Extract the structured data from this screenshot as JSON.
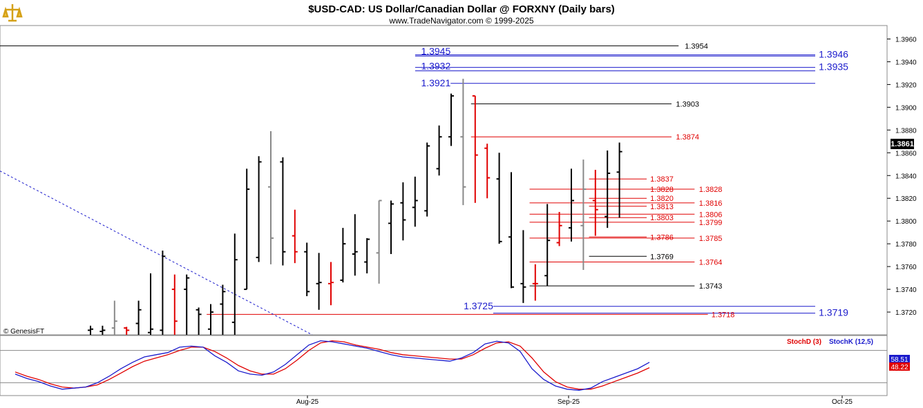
{
  "header": {
    "title": "$USD-CAD:  US Dollar/Canadian Dollar @ FORXNY  (Daily bars)",
    "subtitle": "www.TradeNavigator.com © 1999-2025"
  },
  "watermark": "© GenesisFT",
  "current_price": "1.3861",
  "colors": {
    "up": "#000000",
    "down": "#e00000",
    "neutral": "#888888",
    "blue": "#1a1acc",
    "red": "#e00000",
    "black": "#000000"
  },
  "chart_data": {
    "type": "ohlc",
    "y_axis": {
      "min": 1.37,
      "max": 1.397,
      "ticks": [
        "1.3960",
        "1.3940",
        "1.3920",
        "1.3900",
        "1.3880",
        "1.3860",
        "1.3840",
        "1.3820",
        "1.3800",
        "1.3780",
        "1.3760",
        "1.3740",
        "1.3720"
      ]
    },
    "x_axis": {
      "labels": [
        "Aug-25",
        "Sep-25",
        "Oct-25"
      ]
    },
    "bars": [
      {
        "h": 1.3708,
        "l": 1.37,
        "o": 1.3704,
        "c": 1.3705,
        "dir": "up"
      },
      {
        "h": 1.3708,
        "l": 1.37,
        "o": 1.3703,
        "c": 1.3704,
        "dir": "up"
      },
      {
        "h": 1.373,
        "l": 1.37,
        "o": 1.3706,
        "c": 1.3712,
        "dir": "neutral"
      },
      {
        "h": 1.3707,
        "l": 1.37,
        "o": 1.3706,
        "c": 1.3704,
        "dir": "down"
      },
      {
        "h": 1.373,
        "l": 1.37,
        "o": 1.371,
        "c": 1.3722,
        "dir": "up"
      },
      {
        "h": 1.3754,
        "l": 1.37,
        "o": 1.3702,
        "c": 1.3705,
        "dir": "up"
      },
      {
        "h": 1.3774,
        "l": 1.37,
        "o": 1.3704,
        "c": 1.3769,
        "dir": "up"
      },
      {
        "h": 1.3753,
        "l": 1.37,
        "o": 1.374,
        "c": 1.3712,
        "dir": "down"
      },
      {
        "h": 1.3753,
        "l": 1.37,
        "o": 1.374,
        "c": 1.375,
        "dir": "up"
      },
      {
        "h": 1.3724,
        "l": 1.37,
        "o": 1.3722,
        "c": 1.3718,
        "dir": "up"
      },
      {
        "h": 1.3727,
        "l": 1.37,
        "o": 1.3705,
        "c": 1.372,
        "dir": "up"
      },
      {
        "h": 1.3744,
        "l": 1.37,
        "o": 1.3727,
        "c": 1.3738,
        "dir": "up"
      },
      {
        "h": 1.3789,
        "l": 1.37,
        "o": 1.3711,
        "c": 1.3766,
        "dir": "up"
      },
      {
        "h": 1.3846,
        "l": 1.374,
        "o": 1.374,
        "c": 1.3828,
        "dir": "up"
      },
      {
        "h": 1.3857,
        "l": 1.3764,
        "o": 1.3768,
        "c": 1.3852,
        "dir": "up"
      },
      {
        "h": 1.3879,
        "l": 1.3762,
        "o": 1.383,
        "c": 1.3785,
        "dir": "neutral"
      },
      {
        "h": 1.3856,
        "l": 1.3761,
        "o": 1.3852,
        "c": 1.3773,
        "dir": "up"
      },
      {
        "h": 1.381,
        "l": 1.3763,
        "o": 1.3787,
        "c": 1.3773,
        "dir": "down"
      },
      {
        "h": 1.3781,
        "l": 1.3734,
        "o": 1.3773,
        "c": 1.3738,
        "dir": "up"
      },
      {
        "h": 1.3772,
        "l": 1.3722,
        "o": 1.3745,
        "c": 1.3746,
        "dir": "up"
      },
      {
        "h": 1.3764,
        "l": 1.3726,
        "o": 1.3745,
        "c": 1.3746,
        "dir": "down"
      },
      {
        "h": 1.3794,
        "l": 1.3746,
        "o": 1.3748,
        "c": 1.378,
        "dir": "up"
      },
      {
        "h": 1.3806,
        "l": 1.3752,
        "o": 1.3771,
        "c": 1.3773,
        "dir": "up"
      },
      {
        "h": 1.3785,
        "l": 1.3754,
        "o": 1.3764,
        "c": 1.3784,
        "dir": "up"
      },
      {
        "h": 1.3818,
        "l": 1.3745,
        "o": 1.3772,
        "c": 1.3818,
        "dir": "neutral"
      },
      {
        "h": 1.3818,
        "l": 1.3771,
        "o": 1.3798,
        "c": 1.3815,
        "dir": "up"
      },
      {
        "h": 1.3834,
        "l": 1.3783,
        "o": 1.3816,
        "c": 1.3801,
        "dir": "up"
      },
      {
        "h": 1.3839,
        "l": 1.3795,
        "o": 1.3812,
        "c": 1.3818,
        "dir": "up"
      },
      {
        "h": 1.3869,
        "l": 1.3804,
        "o": 1.3809,
        "c": 1.3866,
        "dir": "up"
      },
      {
        "h": 1.3884,
        "l": 1.384,
        "o": 1.3846,
        "c": 1.3874,
        "dir": "up"
      },
      {
        "h": 1.3912,
        "l": 1.3866,
        "o": 1.3874,
        "c": 1.391,
        "dir": "up"
      },
      {
        "h": 1.3925,
        "l": 1.3814,
        "o": 1.3874,
        "c": 1.383,
        "dir": "neutral"
      },
      {
        "h": 1.391,
        "l": 1.3816,
        "o": 1.391,
        "c": 1.3858,
        "dir": "down"
      },
      {
        "h": 1.3868,
        "l": 1.382,
        "o": 1.3864,
        "c": 1.3838,
        "dir": "down"
      },
      {
        "h": 1.386,
        "l": 1.378,
        "o": 1.3837,
        "c": 1.3782,
        "dir": "up"
      },
      {
        "h": 1.3843,
        "l": 1.3741,
        "o": 1.3786,
        "c": 1.3742,
        "dir": "up"
      },
      {
        "h": 1.3792,
        "l": 1.3728,
        "o": 1.3745,
        "c": 1.3742,
        "dir": "up"
      },
      {
        "h": 1.3762,
        "l": 1.373,
        "o": 1.3745,
        "c": 1.3745,
        "dir": "down"
      },
      {
        "h": 1.3815,
        "l": 1.3743,
        "o": 1.3752,
        "c": 1.3783,
        "dir": "up"
      },
      {
        "h": 1.3808,
        "l": 1.3778,
        "o": 1.3781,
        "c": 1.3796,
        "dir": "down"
      },
      {
        "h": 1.3846,
        "l": 1.3782,
        "o": 1.3794,
        "c": 1.3818,
        "dir": "up"
      },
      {
        "h": 1.3854,
        "l": 1.3757,
        "o": 1.3796,
        "c": 1.3828,
        "dir": "neutral"
      },
      {
        "h": 1.3845,
        "l": 1.3787,
        "o": 1.3818,
        "c": 1.381,
        "dir": "down"
      },
      {
        "h": 1.3862,
        "l": 1.3794,
        "o": 1.3804,
        "c": 1.3842,
        "dir": "up"
      },
      {
        "h": 1.3869,
        "l": 1.3803,
        "o": 1.3843,
        "c": 1.3861,
        "dir": "up"
      }
    ],
    "levels": [
      {
        "value": 1.3954,
        "label": "1.3954",
        "color": "black",
        "x0": 0,
        "x1": 0.765,
        "lx": 0.772,
        "anchor": "start"
      },
      {
        "value": 1.3946,
        "label": "1.3946",
        "color": "blue",
        "x0": 0.468,
        "x1": 0.919,
        "lx": 0.923,
        "anchor": "start",
        "large": true
      },
      {
        "value": 1.3945,
        "label": "1.3945",
        "color": "blue",
        "x0": 0.468,
        "x1": 0.919,
        "lx": 0.508,
        "anchor": "end",
        "large": true,
        "above": true
      },
      {
        "value": 1.3935,
        "label": "1.3935",
        "color": "blue",
        "x0": 0.468,
        "x1": 0.919,
        "lx": 0.923,
        "anchor": "start",
        "large": true
      },
      {
        "value": 1.3932,
        "label": "1.3932",
        "color": "blue",
        "x0": 0.468,
        "x1": 0.919,
        "lx": 0.508,
        "anchor": "end",
        "large": true,
        "above": true
      },
      {
        "value": 1.3921,
        "label": "1.3921",
        "color": "blue",
        "x0": 0.508,
        "x1": 0.919,
        "lx": 0.508,
        "anchor": "end",
        "large": true
      },
      {
        "value": 1.3903,
        "label": "1.3903",
        "color": "black",
        "x0": 0.531,
        "x1": 0.757,
        "lx": 0.762,
        "anchor": "start"
      },
      {
        "value": 1.3874,
        "label": "1.3874",
        "color": "red",
        "x0": 0.531,
        "x1": 0.757,
        "lx": 0.762,
        "anchor": "start"
      },
      {
        "value": 1.3837,
        "label": "1.3837",
        "color": "red",
        "x0": 0.664,
        "x1": 0.729,
        "lx": 0.733,
        "anchor": "start"
      },
      {
        "value": 1.3828,
        "label": "1.3828",
        "color": "red",
        "x0": 0.597,
        "x1": 0.783,
        "lx": 0.788,
        "anchor": "start"
      },
      {
        "value": 1.3828,
        "label": "1.3828",
        "color": "red",
        "x0": 0.664,
        "x1": 0.729,
        "lx": 0.733,
        "anchor": "start"
      },
      {
        "value": 1.382,
        "label": "1.3820",
        "color": "red",
        "x0": 0.664,
        "x1": 0.729,
        "lx": 0.733,
        "anchor": "start"
      },
      {
        "value": 1.3816,
        "label": "1.3816",
        "color": "red",
        "x0": 0.597,
        "x1": 0.783,
        "lx": 0.788,
        "anchor": "start"
      },
      {
        "value": 1.3813,
        "label": "1.3813",
        "color": "red",
        "x0": 0.664,
        "x1": 0.729,
        "lx": 0.733,
        "anchor": "start"
      },
      {
        "value": 1.3806,
        "label": "1.3806",
        "color": "red",
        "x0": 0.597,
        "x1": 0.783,
        "lx": 0.788,
        "anchor": "start"
      },
      {
        "value": 1.3803,
        "label": "1.3803",
        "color": "red",
        "x0": 0.664,
        "x1": 0.729,
        "lx": 0.733,
        "anchor": "start"
      },
      {
        "value": 1.3799,
        "label": "1.3799",
        "color": "red",
        "x0": 0.597,
        "x1": 0.783,
        "lx": 0.788,
        "anchor": "start"
      },
      {
        "value": 1.3786,
        "label": "1.3786",
        "color": "red",
        "x0": 0.664,
        "x1": 0.729,
        "lx": 0.733,
        "anchor": "start"
      },
      {
        "value": 1.3785,
        "label": "1.3785",
        "color": "red",
        "x0": 0.597,
        "x1": 0.783,
        "lx": 0.788,
        "anchor": "start"
      },
      {
        "value": 1.3769,
        "label": "1.3769",
        "color": "black",
        "x0": 0.664,
        "x1": 0.729,
        "lx": 0.733,
        "anchor": "start"
      },
      {
        "value": 1.3764,
        "label": "1.3764",
        "color": "red",
        "x0": 0.597,
        "x1": 0.783,
        "lx": 0.788,
        "anchor": "start"
      },
      {
        "value": 1.3743,
        "label": "1.3743",
        "color": "black",
        "x0": 0.597,
        "x1": 0.783,
        "lx": 0.788,
        "anchor": "start"
      },
      {
        "value": 1.3725,
        "label": "1.3725",
        "color": "blue",
        "x0": 0.556,
        "x1": 0.919,
        "lx": 0.556,
        "anchor": "end",
        "large": true
      },
      {
        "value": 1.3719,
        "label": "1.3719",
        "color": "blue",
        "x0": 0.556,
        "x1": 0.919,
        "lx": 0.923,
        "anchor": "start",
        "large": true
      },
      {
        "value": 1.3718,
        "label": "1.3718",
        "color": "red",
        "x0": 0.233,
        "x1": 0.798,
        "lx": 0.802,
        "anchor": "start"
      }
    ],
    "trendline": {
      "from": [
        0,
        1.3844
      ],
      "to": [
        0.352,
        1.37
      ],
      "color": "blue",
      "style": "dashed"
    },
    "stochastic": {
      "legend": [
        {
          "name": "StochD (3)",
          "color": "red"
        },
        {
          "name": "StochK (12,5)",
          "color": "blue"
        }
      ],
      "last_values": {
        "k": "58.51",
        "d": "48.22"
      },
      "k": [
        36,
        28,
        22,
        14,
        8,
        10,
        12,
        20,
        32,
        46,
        58,
        68,
        72,
        76,
        86,
        88,
        86,
        70,
        58,
        42,
        36,
        34,
        40,
        54,
        72,
        90,
        98,
        96,
        92,
        88,
        84,
        78,
        72,
        68,
        66,
        64,
        62,
        60,
        66,
        76,
        92,
        97,
        94,
        78,
        46,
        26,
        14,
        8,
        6,
        10,
        22,
        30,
        38,
        46,
        58
      ],
      "d": [
        40,
        32,
        26,
        18,
        12,
        10,
        12,
        16,
        26,
        38,
        50,
        60,
        66,
        72,
        80,
        86,
        86,
        78,
        66,
        52,
        42,
        36,
        36,
        46,
        62,
        80,
        94,
        98,
        96,
        90,
        86,
        82,
        76,
        72,
        70,
        68,
        66,
        64,
        64,
        72,
        84,
        94,
        96,
        88,
        66,
        40,
        22,
        12,
        8,
        8,
        14,
        22,
        30,
        38,
        48
      ]
    }
  }
}
